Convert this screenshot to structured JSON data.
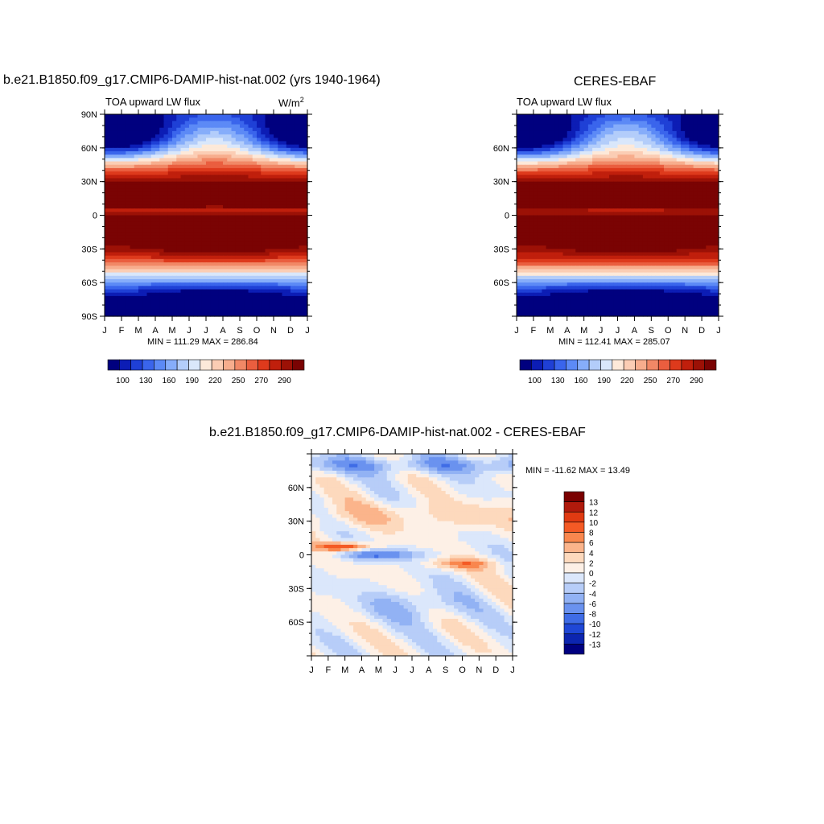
{
  "panel_left": {
    "title": "b.e21.B1850.f09_g17.CMIP6-DAMIP-hist-nat.002 (yrs 1940-1964)",
    "left_string": "TOA upward LW flux",
    "units_base": "W/m",
    "units_exp": "2",
    "minmax": "MIN = 111.29 MAX = 286.84"
  },
  "panel_right": {
    "title": "CERES-EBAF",
    "left_string": "TOA upward LW flux",
    "minmax": "MIN = 112.41 MAX = 285.07"
  },
  "panel_diff": {
    "title": "b.e21.B1850.f09_g17.CMIP6-DAMIP-hist-nat.002 - CERES-EBAF",
    "minmax": "MIN = -11.62 MAX =  13.49"
  },
  "chart_data": [
    {
      "type": "heatmap",
      "title": "b.e21.B1850.f09_g17.CMIP6-DAMIP-hist-nat.002 (yrs 1940-1964)",
      "subtitle": "TOA upward LW flux",
      "units": "W/m2",
      "x_ticks": [
        "J",
        "F",
        "M",
        "A",
        "M",
        "J",
        "J",
        "A",
        "S",
        "O",
        "N",
        "D",
        "J"
      ],
      "y_ticks": [
        "90N",
        "60N",
        "30N",
        "0",
        "30S",
        "60S",
        "90S"
      ],
      "ylim": [
        -90,
        90
      ],
      "min": 111.29,
      "max": 286.84,
      "colorbar_labels": [
        "100",
        "130",
        "160",
        "190",
        "220",
        "250",
        "270",
        "290"
      ],
      "colors": [
        "#00007f",
        "#0c1db5",
        "#1f40d6",
        "#3a65ec",
        "#5c8af6",
        "#86adfa",
        "#b3cdfa",
        "#d9e7fb",
        "#fde9d9",
        "#fbcdb4",
        "#f7ad8d",
        "#f18866",
        "#ea5e3f",
        "#de3a1c",
        "#c01f0c",
        "#9c1106",
        "#7a0303"
      ],
      "levels": [
        100,
        110,
        120,
        130,
        140,
        150,
        160,
        170,
        180,
        190,
        200,
        210,
        220,
        230,
        240,
        250,
        260,
        270,
        280,
        290
      ]
    },
    {
      "type": "heatmap",
      "title": "CERES-EBAF",
      "subtitle": "TOA upward LW flux",
      "x_ticks": [
        "J",
        "F",
        "M",
        "A",
        "M",
        "J",
        "J",
        "A",
        "S",
        "O",
        "N",
        "D",
        "J"
      ],
      "y_ticks": [
        "60N",
        "30N",
        "0",
        "30S",
        "60S"
      ],
      "ylim": [
        -90,
        90
      ],
      "min": 112.41,
      "max": 285.07,
      "colorbar_labels": [
        "100",
        "130",
        "160",
        "190",
        "220",
        "250",
        "270",
        "290"
      ]
    },
    {
      "type": "heatmap",
      "title": "b.e21.B1850.f09_g17.CMIP6-DAMIP-hist-nat.002 - CERES-EBAF",
      "x_ticks": [
        "J",
        "F",
        "M",
        "A",
        "M",
        "J",
        "J",
        "A",
        "S",
        "O",
        "N",
        "D",
        "J"
      ],
      "y_ticks": [
        "60N",
        "30N",
        "0",
        "30S",
        "60S"
      ],
      "ylim": [
        -90,
        90
      ],
      "min": -11.62,
      "max": 13.49,
      "colorbar_labels": [
        "13",
        "12",
        "10",
        "8",
        "6",
        "4",
        "2",
        "0",
        "-2",
        "-4",
        "-6",
        "-8",
        "-10",
        "-12",
        "-13"
      ],
      "diff_colors": [
        "#7a0000",
        "#b01a0c",
        "#e03a12",
        "#f45a25",
        "#f9874e",
        "#fbb48b",
        "#fdd9bd",
        "#fdf0e6",
        "#dbe7fb",
        "#b7cdf8",
        "#92b2f4",
        "#6a92ef",
        "#3f6ce6",
        "#1f47d6",
        "#0c25b0",
        "#000080"
      ]
    }
  ]
}
